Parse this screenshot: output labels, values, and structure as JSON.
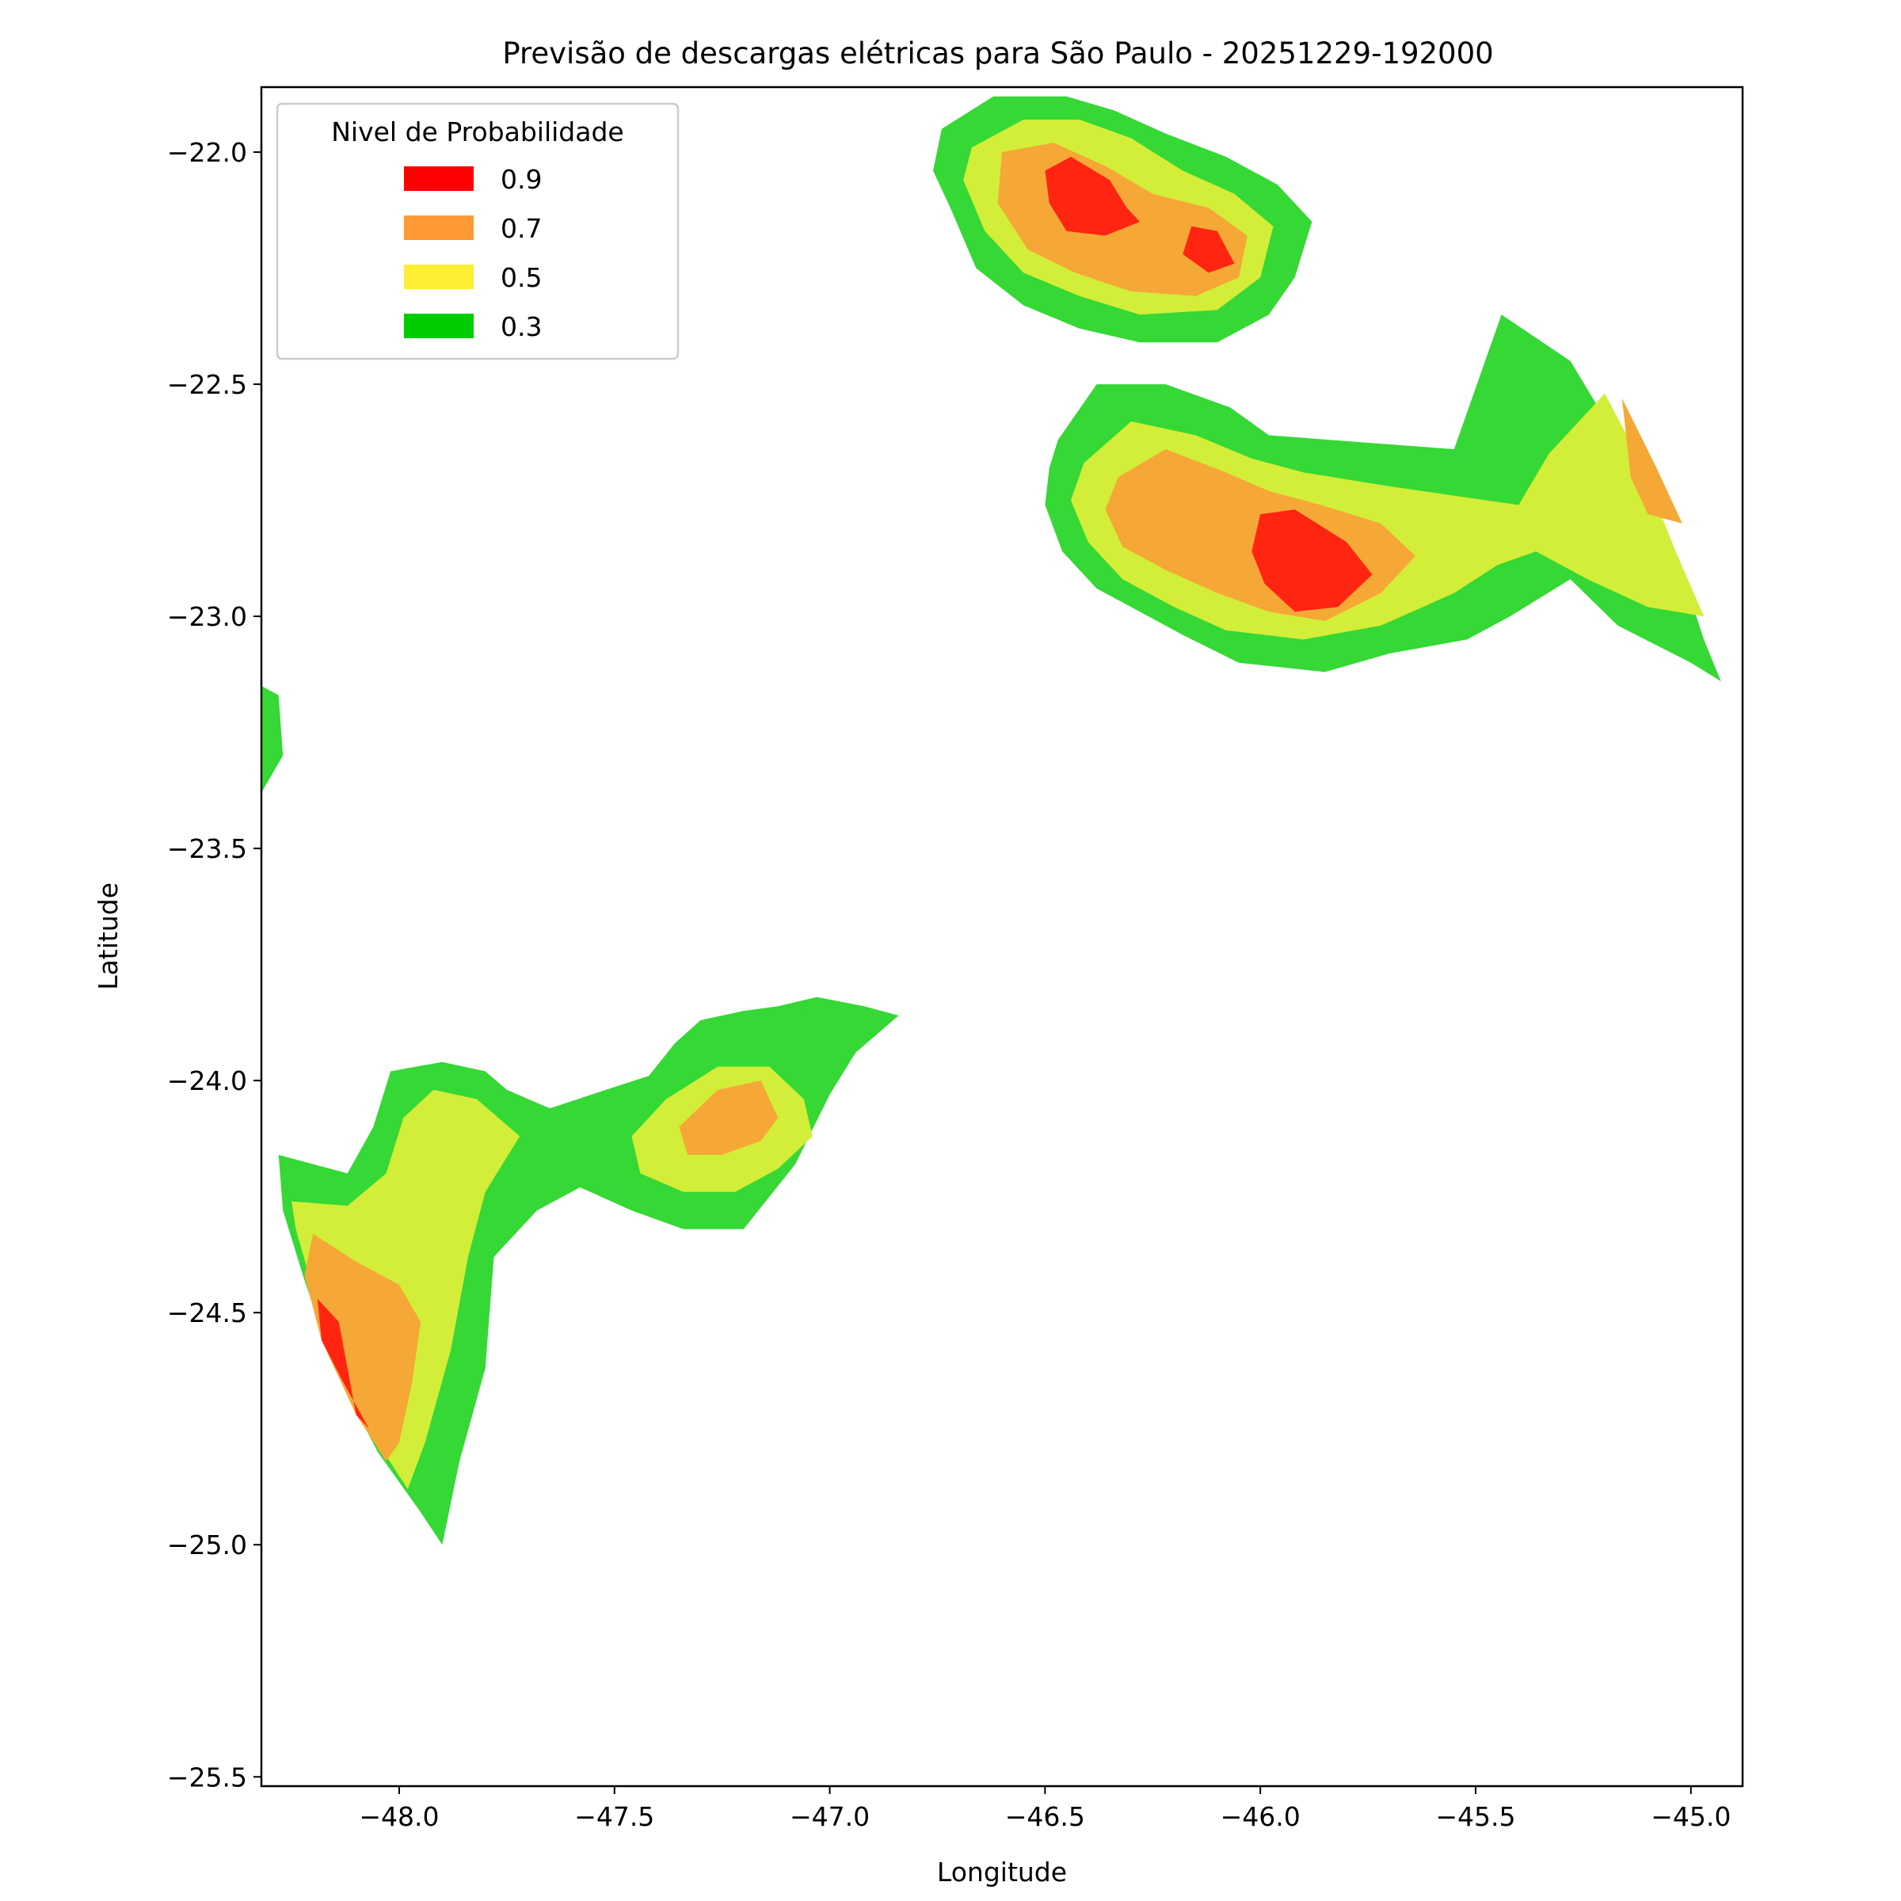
{
  "chart_data": {
    "type": "contour map",
    "title": "Previsão de descargas elétricas para São Paulo - 20251229-192000",
    "xlabel": "Longitude",
    "ylabel": "Latitude",
    "xlim": [
      -48.32,
      -44.88
    ],
    "ylim": [
      -25.52,
      -21.86
    ],
    "x_ticks": [
      -48.0,
      -47.5,
      -47.0,
      -46.5,
      -46.0,
      -45.5,
      -45.0
    ],
    "x_tick_labels": [
      "−48.0",
      "−47.5",
      "−47.0",
      "−46.5",
      "−46.0",
      "−45.5",
      "−45.0"
    ],
    "y_ticks": [
      -22.0,
      -22.5,
      -23.0,
      -23.5,
      -24.0,
      -24.5,
      -25.0,
      -25.5
    ],
    "y_tick_labels": [
      "−22.0",
      "−22.5",
      "−23.0",
      "−23.5",
      "−24.0",
      "−24.5",
      "−25.0",
      "−25.5"
    ],
    "grid": false,
    "legend": {
      "title": "Nivel de Probabilidade",
      "location": "upper-left",
      "entries": [
        {
          "label": "0.9",
          "color": "#ff0000"
        },
        {
          "label": "0.7",
          "color": "#ff9933"
        },
        {
          "label": "0.5",
          "color": "#ffee33"
        },
        {
          "label": "0.3",
          "color": "#00cc00"
        }
      ]
    },
    "fill_colors": {
      "0.3": "#35d835",
      "0.5": "#d3ee38",
      "0.7": "#f5a836",
      "0.9": "#ff2510",
      "faint": "#d4f3d0"
    },
    "regions": [
      {
        "name": "northeast-cell-top",
        "level": 0.3,
        "points": [
          [
            -46.74,
            -21.95
          ],
          [
            -46.62,
            -21.88
          ],
          [
            -46.45,
            -21.88
          ],
          [
            -46.34,
            -21.91
          ],
          [
            -46.22,
            -21.96
          ],
          [
            -46.08,
            -22.01
          ],
          [
            -45.96,
            -22.07
          ],
          [
            -45.88,
            -22.15
          ],
          [
            -45.92,
            -22.27
          ],
          [
            -45.98,
            -22.35
          ],
          [
            -46.1,
            -22.41
          ],
          [
            -46.28,
            -22.41
          ],
          [
            -46.42,
            -22.38
          ],
          [
            -46.55,
            -22.33
          ],
          [
            -46.66,
            -22.25
          ],
          [
            -46.72,
            -22.12
          ],
          [
            -46.76,
            -22.04
          ]
        ]
      },
      {
        "name": "northeast-cell-top",
        "level": 0.5,
        "points": [
          [
            -46.67,
            -21.99
          ],
          [
            -46.55,
            -21.93
          ],
          [
            -46.42,
            -21.93
          ],
          [
            -46.3,
            -21.97
          ],
          [
            -46.18,
            -22.04
          ],
          [
            -46.06,
            -22.09
          ],
          [
            -45.97,
            -22.16
          ],
          [
            -46.0,
            -22.27
          ],
          [
            -46.1,
            -22.34
          ],
          [
            -46.28,
            -22.35
          ],
          [
            -46.42,
            -22.31
          ],
          [
            -46.55,
            -22.26
          ],
          [
            -46.64,
            -22.17
          ],
          [
            -46.69,
            -22.06
          ]
        ]
      },
      {
        "name": "northeast-cell-top",
        "level": 0.7,
        "points": [
          [
            -46.6,
            -22.0
          ],
          [
            -46.48,
            -21.98
          ],
          [
            -46.36,
            -22.03
          ],
          [
            -46.25,
            -22.09
          ],
          [
            -46.12,
            -22.12
          ],
          [
            -46.03,
            -22.18
          ],
          [
            -46.05,
            -22.27
          ],
          [
            -46.15,
            -22.31
          ],
          [
            -46.3,
            -22.3
          ],
          [
            -46.43,
            -22.26
          ],
          [
            -46.54,
            -22.21
          ],
          [
            -46.61,
            -22.11
          ]
        ]
      },
      {
        "name": "northeast-cell-top",
        "level": 0.9,
        "points": [
          [
            -46.5,
            -22.04
          ],
          [
            -46.44,
            -22.01
          ],
          [
            -46.35,
            -22.06
          ],
          [
            -46.31,
            -22.12
          ],
          [
            -46.28,
            -22.15
          ],
          [
            -46.36,
            -22.18
          ],
          [
            -46.45,
            -22.17
          ],
          [
            -46.49,
            -22.11
          ]
        ]
      },
      {
        "name": "northeast-cell-top",
        "level": 0.9,
        "points": [
          [
            -46.16,
            -22.16
          ],
          [
            -46.1,
            -22.17
          ],
          [
            -46.06,
            -22.24
          ],
          [
            -46.12,
            -22.26
          ],
          [
            -46.18,
            -22.22
          ]
        ]
      },
      {
        "name": "northeast-cell-main",
        "level": 0.3,
        "points": [
          [
            -46.47,
            -22.62
          ],
          [
            -46.38,
            -22.5
          ],
          [
            -46.22,
            -22.5
          ],
          [
            -46.07,
            -22.55
          ],
          [
            -45.98,
            -22.61
          ],
          [
            -45.55,
            -22.64
          ],
          [
            -45.44,
            -22.35
          ],
          [
            -45.28,
            -22.45
          ],
          [
            -45.15,
            -22.65
          ],
          [
            -45.04,
            -22.85
          ],
          [
            -44.97,
            -23.05
          ],
          [
            -44.93,
            -23.14
          ],
          [
            -45.0,
            -23.1
          ],
          [
            -45.17,
            -23.02
          ],
          [
            -45.28,
            -22.92
          ],
          [
            -45.42,
            -23.0
          ],
          [
            -45.52,
            -23.05
          ],
          [
            -45.7,
            -23.08
          ],
          [
            -45.85,
            -23.12
          ],
          [
            -46.05,
            -23.1
          ],
          [
            -46.18,
            -23.04
          ],
          [
            -46.28,
            -22.99
          ],
          [
            -46.38,
            -22.94
          ],
          [
            -46.46,
            -22.86
          ],
          [
            -46.5,
            -22.76
          ],
          [
            -46.49,
            -22.68
          ]
        ]
      },
      {
        "name": "northeast-cell-main",
        "level": 0.5,
        "points": [
          [
            -46.41,
            -22.67
          ],
          [
            -46.3,
            -22.58
          ],
          [
            -46.15,
            -22.61
          ],
          [
            -46.02,
            -22.66
          ],
          [
            -45.9,
            -22.69
          ],
          [
            -45.7,
            -22.72
          ],
          [
            -45.55,
            -22.74
          ],
          [
            -45.4,
            -22.76
          ],
          [
            -45.33,
            -22.65
          ],
          [
            -45.2,
            -22.52
          ],
          [
            -45.12,
            -22.66
          ],
          [
            -45.04,
            -22.85
          ],
          [
            -44.97,
            -23.0
          ],
          [
            -45.1,
            -22.98
          ],
          [
            -45.24,
            -22.92
          ],
          [
            -45.36,
            -22.86
          ],
          [
            -45.45,
            -22.89
          ],
          [
            -45.55,
            -22.95
          ],
          [
            -45.72,
            -23.02
          ],
          [
            -45.9,
            -23.05
          ],
          [
            -46.08,
            -23.03
          ],
          [
            -46.2,
            -22.98
          ],
          [
            -46.32,
            -22.92
          ],
          [
            -46.4,
            -22.84
          ],
          [
            -46.44,
            -22.75
          ]
        ]
      },
      {
        "name": "northeast-cell-main",
        "level": 0.7,
        "points": [
          [
            -46.33,
            -22.7
          ],
          [
            -46.22,
            -22.64
          ],
          [
            -46.08,
            -22.69
          ],
          [
            -45.98,
            -22.73
          ],
          [
            -45.86,
            -22.76
          ],
          [
            -45.72,
            -22.8
          ],
          [
            -45.64,
            -22.87
          ],
          [
            -45.72,
            -22.95
          ],
          [
            -45.85,
            -23.01
          ],
          [
            -45.98,
            -22.99
          ],
          [
            -46.1,
            -22.95
          ],
          [
            -46.22,
            -22.9
          ],
          [
            -46.32,
            -22.85
          ],
          [
            -46.36,
            -22.77
          ]
        ]
      },
      {
        "name": "northeast-cell-main",
        "level": 0.9,
        "points": [
          [
            -46.0,
            -22.78
          ],
          [
            -45.92,
            -22.77
          ],
          [
            -45.8,
            -22.84
          ],
          [
            -45.74,
            -22.91
          ],
          [
            -45.82,
            -22.98
          ],
          [
            -45.92,
            -22.99
          ],
          [
            -45.99,
            -22.93
          ],
          [
            -46.02,
            -22.86
          ]
        ]
      },
      {
        "name": "northeast-edge-orange",
        "level": 0.7,
        "points": [
          [
            -45.16,
            -22.53
          ],
          [
            -45.08,
            -22.68
          ],
          [
            -45.02,
            -22.8
          ],
          [
            -45.1,
            -22.78
          ],
          [
            -45.14,
            -22.7
          ]
        ]
      },
      {
        "name": "west-edge-sliver",
        "level": 0.3,
        "points": [
          [
            -48.32,
            -23.15
          ],
          [
            -48.28,
            -23.17
          ],
          [
            -48.27,
            -23.3
          ],
          [
            -48.32,
            -23.38
          ]
        ]
      },
      {
        "name": "faint-patch",
        "level": "faint",
        "points": [
          [
            -47.8,
            -22.25
          ],
          [
            -47.72,
            -22.2
          ],
          [
            -47.64,
            -22.14
          ],
          [
            -47.61,
            -22.22
          ],
          [
            -47.66,
            -22.27
          ],
          [
            -47.73,
            -22.26
          ]
        ]
      },
      {
        "name": "southwest-cell",
        "level": 0.3,
        "points": [
          [
            -48.28,
            -24.16
          ],
          [
            -48.12,
            -24.2
          ],
          [
            -48.06,
            -24.1
          ],
          [
            -48.02,
            -23.98
          ],
          [
            -47.9,
            -23.96
          ],
          [
            -47.8,
            -23.98
          ],
          [
            -47.75,
            -24.02
          ],
          [
            -47.65,
            -24.06
          ],
          [
            -47.52,
            -24.02
          ],
          [
            -47.42,
            -23.99
          ],
          [
            -47.36,
            -23.92
          ],
          [
            -47.3,
            -23.87
          ],
          [
            -47.2,
            -23.85
          ],
          [
            -47.12,
            -23.84
          ],
          [
            -47.03,
            -23.82
          ],
          [
            -46.92,
            -23.84
          ],
          [
            -46.84,
            -23.86
          ],
          [
            -46.94,
            -23.94
          ],
          [
            -47.0,
            -24.03
          ],
          [
            -47.08,
            -24.18
          ],
          [
            -47.2,
            -24.32
          ],
          [
            -47.34,
            -24.32
          ],
          [
            -47.46,
            -24.28
          ],
          [
            -47.58,
            -24.23
          ],
          [
            -47.68,
            -24.28
          ],
          [
            -47.78,
            -24.38
          ],
          [
            -47.8,
            -24.62
          ],
          [
            -47.86,
            -24.82
          ],
          [
            -47.9,
            -25.0
          ],
          [
            -47.95,
            -24.93
          ],
          [
            -48.05,
            -24.8
          ],
          [
            -48.15,
            -24.62
          ],
          [
            -48.22,
            -24.43
          ],
          [
            -48.27,
            -24.28
          ]
        ]
      },
      {
        "name": "southwest-cell",
        "level": 0.5,
        "points": [
          [
            -48.25,
            -24.26
          ],
          [
            -48.12,
            -24.27
          ],
          [
            -48.03,
            -24.2
          ],
          [
            -47.99,
            -24.08
          ],
          [
            -47.92,
            -24.02
          ],
          [
            -47.82,
            -24.04
          ],
          [
            -47.72,
            -24.12
          ],
          [
            -47.8,
            -24.24
          ],
          [
            -47.84,
            -24.38
          ],
          [
            -47.88,
            -24.58
          ],
          [
            -47.94,
            -24.78
          ],
          [
            -47.98,
            -24.88
          ],
          [
            -48.05,
            -24.78
          ],
          [
            -48.14,
            -24.62
          ],
          [
            -48.2,
            -24.45
          ],
          [
            -48.24,
            -24.32
          ]
        ]
      },
      {
        "name": "southwest-cell",
        "level": 0.7,
        "points": [
          [
            -48.2,
            -24.33
          ],
          [
            -48.1,
            -24.39
          ],
          [
            -48.0,
            -24.44
          ],
          [
            -47.95,
            -24.52
          ],
          [
            -47.97,
            -24.65
          ],
          [
            -48.0,
            -24.78
          ],
          [
            -48.03,
            -24.82
          ],
          [
            -48.1,
            -24.72
          ],
          [
            -48.18,
            -24.56
          ],
          [
            -48.22,
            -24.42
          ]
        ]
      },
      {
        "name": "southwest-cell",
        "level": 0.9,
        "points": [
          [
            -48.19,
            -24.47
          ],
          [
            -48.14,
            -24.52
          ],
          [
            -48.12,
            -24.62
          ],
          [
            -48.1,
            -24.72
          ],
          [
            -48.07,
            -24.75
          ],
          [
            -48.13,
            -24.65
          ],
          [
            -48.18,
            -24.56
          ]
        ]
      },
      {
        "name": "southwest-cell",
        "level": 0.5,
        "points": [
          [
            -47.46,
            -24.12
          ],
          [
            -47.38,
            -24.04
          ],
          [
            -47.26,
            -23.97
          ],
          [
            -47.14,
            -23.97
          ],
          [
            -47.06,
            -24.04
          ],
          [
            -47.04,
            -24.12
          ],
          [
            -47.12,
            -24.19
          ],
          [
            -47.22,
            -24.24
          ],
          [
            -47.34,
            -24.24
          ],
          [
            -47.44,
            -24.2
          ]
        ]
      },
      {
        "name": "southwest-cell",
        "level": 0.7,
        "points": [
          [
            -47.35,
            -24.1
          ],
          [
            -47.26,
            -24.02
          ],
          [
            -47.16,
            -24.0
          ],
          [
            -47.12,
            -24.08
          ],
          [
            -47.16,
            -24.13
          ],
          [
            -47.25,
            -24.16
          ],
          [
            -47.33,
            -24.16
          ]
        ]
      },
      {
        "name": "small-green-spot",
        "level": 0.3,
        "points": [
          [
            -47.07,
            -23.84
          ],
          [
            -47.04,
            -23.85
          ],
          [
            -47.02,
            -23.87
          ],
          [
            -47.06,
            -23.87
          ]
        ]
      }
    ]
  }
}
